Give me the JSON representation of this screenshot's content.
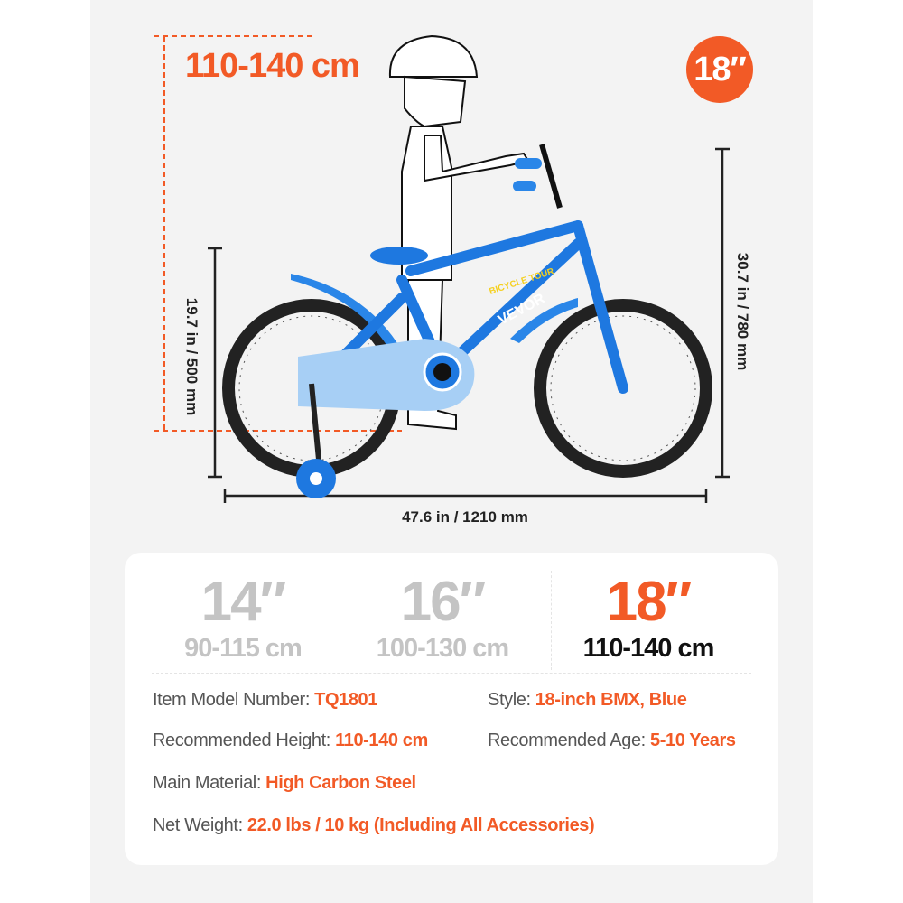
{
  "diagram": {
    "rider_height_range": "110-140 cm",
    "wheel_size_badge": "18″",
    "seat_height": "19.7 in / 500 mm",
    "overall_height": "30.7 in / 780 mm",
    "overall_length": "47.6 in / 1210 mm",
    "brand_on_frame": "VEVOR",
    "frame_decal": "BICYCLE TOUR"
  },
  "sizes": [
    {
      "size": "14″",
      "range": "90-115 cm",
      "active": false
    },
    {
      "size": "16″",
      "range": "100-130 cm",
      "active": false
    },
    {
      "size": "18″",
      "range": "110-140 cm",
      "active": true
    }
  ],
  "specs": {
    "model": {
      "label": "Item Model Number: ",
      "value": "TQ1801"
    },
    "style": {
      "label": "Style: ",
      "value": "18-inch BMX, Blue"
    },
    "height": {
      "label": "Recommended Height: ",
      "value": "110-140 cm"
    },
    "age": {
      "label": "Recommended Age: ",
      "value": "5-10 Years"
    },
    "material": {
      "label": "Main Material: ",
      "value": "High Carbon Steel"
    },
    "weight": {
      "label": "Net Weight: ",
      "value": "22.0 lbs / 10 kg (Including All Accessories)"
    }
  },
  "colors": {
    "accent": "#f25a26",
    "bike_blue": "#1e78e0",
    "panel": "#f3f3f3"
  }
}
